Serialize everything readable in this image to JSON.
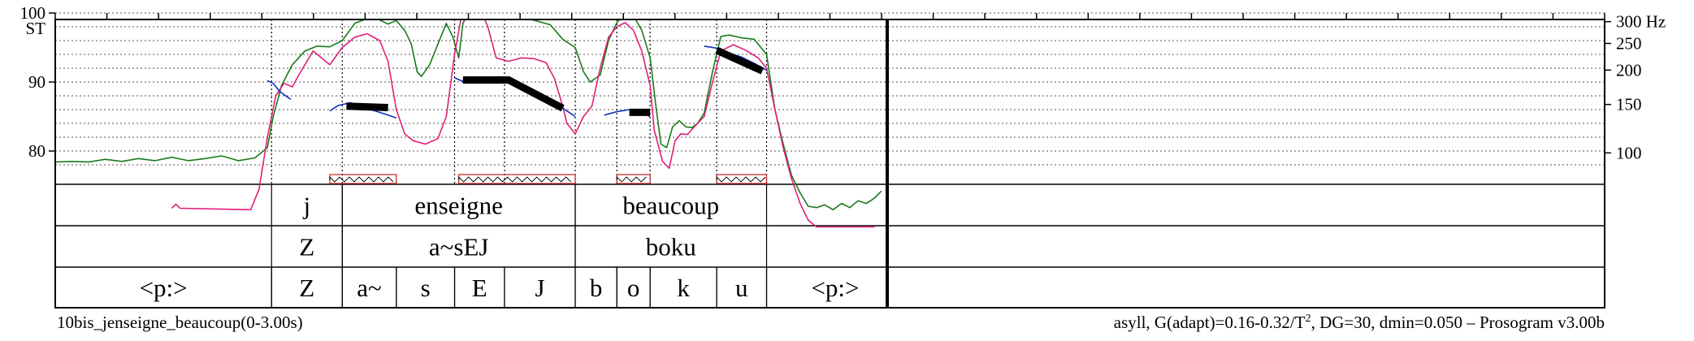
{
  "chart_data": {
    "type": "line",
    "title": "",
    "x_range_s": [
      0,
      3.0
    ],
    "y_range_st": [
      76,
      101
    ],
    "y_ticks_left": [
      {
        "value": 80,
        "label": "80"
      },
      {
        "value": 90,
        "label": "90"
      },
      {
        "value": 100,
        "label": "100"
      }
    ],
    "y_unit_left": "ST",
    "y_ticks_right": [
      {
        "hz": 100,
        "label": "100"
      },
      {
        "hz": 150,
        "label": "150"
      },
      {
        "hz": 200,
        "label": "200"
      },
      {
        "hz": 250,
        "label": "250"
      },
      {
        "hz": 300,
        "label": "300 Hz"
      }
    ],
    "grid_dotted_st": [
      78,
      80,
      82,
      84,
      86,
      88,
      90,
      92,
      94,
      96,
      98,
      100
    ],
    "boundaries_s": [
      0.26,
      0.345,
      0.48,
      0.54,
      0.625,
      0.675,
      0.715,
      0.795,
      0.855
    ],
    "tiers": [
      {
        "name": "words",
        "items": [
          {
            "label": "j",
            "start": 0.26,
            "end": 0.345
          },
          {
            "label": "enseigne",
            "start": 0.345,
            "end": 0.625
          },
          {
            "label": "beaucoup",
            "start": 0.625,
            "end": 0.855
          }
        ]
      },
      {
        "name": "syllables",
        "items": [
          {
            "label": "Z",
            "start": 0.26,
            "end": 0.345
          },
          {
            "label": "a~sEJ",
            "start": 0.345,
            "end": 0.625
          },
          {
            "label": "boku",
            "start": 0.625,
            "end": 0.855
          }
        ]
      },
      {
        "name": "phones",
        "items": [
          {
            "label": "<p:>",
            "start": 0.0,
            "end": 0.26
          },
          {
            "label": "Z",
            "start": 0.26,
            "end": 0.345
          },
          {
            "label": "a~",
            "start": 0.345,
            "end": 0.41
          },
          {
            "label": "s",
            "start": 0.41,
            "end": 0.48
          },
          {
            "label": "E",
            "start": 0.48,
            "end": 0.54
          },
          {
            "label": "J",
            "start": 0.54,
            "end": 0.625
          },
          {
            "label": "b",
            "start": 0.625,
            "end": 0.675
          },
          {
            "label": "o",
            "start": 0.675,
            "end": 0.715
          },
          {
            "label": "k",
            "start": 0.715,
            "end": 0.795
          },
          {
            "label": "u",
            "start": 0.795,
            "end": 0.855
          },
          {
            "label": "<p:>",
            "start": 0.855,
            "end": 1.02
          }
        ]
      }
    ],
    "stylized_pitch": [
      {
        "points": [
          [
            0.35,
            86.5
          ],
          [
            0.4,
            86.3
          ]
        ]
      },
      {
        "points": [
          [
            0.49,
            90.3
          ],
          [
            0.545,
            90.3
          ],
          [
            0.61,
            86.2
          ]
        ]
      },
      {
        "points": [
          [
            0.69,
            85.6
          ],
          [
            0.715,
            85.6
          ]
        ]
      },
      {
        "points": [
          [
            0.795,
            94.6
          ],
          [
            0.85,
            91.6
          ]
        ]
      }
    ],
    "nuclei": [
      {
        "start": 0.33,
        "end": 0.41
      },
      {
        "start": 0.485,
        "end": 0.625
      },
      {
        "start": 0.675,
        "end": 0.715
      },
      {
        "start": 0.795,
        "end": 0.855
      }
    ],
    "series": [
      {
        "name": "",
        "color": "#1a7a1a",
        "points": [
          [
            0.0,
            78.4
          ],
          [
            0.02,
            78.5
          ],
          [
            0.04,
            78.4
          ],
          [
            0.06,
            78.8
          ],
          [
            0.08,
            78.5
          ],
          [
            0.1,
            78.9
          ],
          [
            0.12,
            78.6
          ],
          [
            0.14,
            79.1
          ],
          [
            0.16,
            78.6
          ],
          [
            0.18,
            78.9
          ],
          [
            0.2,
            79.3
          ],
          [
            0.22,
            78.6
          ],
          [
            0.24,
            79.0
          ],
          [
            0.255,
            80.5
          ],
          [
            0.262,
            85.0
          ],
          [
            0.272,
            89.5
          ],
          [
            0.285,
            92.5
          ],
          [
            0.3,
            94.5
          ],
          [
            0.315,
            95.2
          ],
          [
            0.33,
            95.1
          ],
          [
            0.345,
            96.0
          ],
          [
            0.36,
            98.5
          ],
          [
            0.375,
            99.2
          ],
          [
            0.39,
            99.0
          ],
          [
            0.4,
            98.4
          ],
          [
            0.41,
            98.9
          ],
          [
            0.42,
            97.5
          ],
          [
            0.428,
            95.5
          ],
          [
            0.435,
            91.5
          ],
          [
            0.44,
            90.8
          ],
          [
            0.45,
            92.5
          ],
          [
            0.46,
            95.5
          ],
          [
            0.47,
            98.5
          ],
          [
            0.478,
            96.5
          ],
          [
            0.485,
            93.5
          ],
          [
            0.49,
            98.5
          ],
          [
            0.5,
            100.8
          ],
          [
            0.51,
            101.2
          ],
          [
            0.52,
            100.2
          ],
          [
            0.53,
            100.4
          ],
          [
            0.54,
            101.0
          ],
          [
            0.55,
            100.2
          ],
          [
            0.565,
            99.3
          ],
          [
            0.58,
            98.8
          ],
          [
            0.595,
            98.3
          ],
          [
            0.61,
            96.2
          ],
          [
            0.625,
            95.0
          ],
          [
            0.635,
            91.5
          ],
          [
            0.643,
            90.0
          ],
          [
            0.655,
            91.0
          ],
          [
            0.665,
            96.0
          ],
          [
            0.675,
            98.6
          ],
          [
            0.685,
            100.0
          ],
          [
            0.695,
            99.6
          ],
          [
            0.705,
            97.5
          ],
          [
            0.715,
            93.5
          ],
          [
            0.722,
            86.5
          ],
          [
            0.728,
            81.0
          ],
          [
            0.735,
            80.5
          ],
          [
            0.742,
            83.5
          ],
          [
            0.75,
            84.4
          ],
          [
            0.758,
            83.5
          ],
          [
            0.765,
            83.4
          ],
          [
            0.772,
            84.0
          ],
          [
            0.78,
            85.5
          ],
          [
            0.79,
            91.5
          ],
          [
            0.8,
            96.6
          ],
          [
            0.81,
            96.8
          ],
          [
            0.825,
            96.4
          ],
          [
            0.84,
            96.2
          ],
          [
            0.855,
            94.0
          ],
          [
            0.865,
            86.0
          ],
          [
            0.875,
            81.0
          ],
          [
            0.885,
            76.5
          ],
          [
            0.895,
            74.0
          ],
          [
            0.905,
            72.0
          ],
          [
            0.915,
            71.8
          ],
          [
            0.925,
            72.2
          ],
          [
            0.935,
            71.5
          ],
          [
            0.945,
            72.4
          ],
          [
            0.955,
            71.8
          ],
          [
            0.965,
            72.8
          ],
          [
            0.975,
            72.4
          ],
          [
            0.985,
            73.2
          ],
          [
            0.993,
            74.2
          ]
        ]
      },
      {
        "name": "",
        "color": "#e0207a",
        "points": [
          [
            0.14,
            71.7
          ],
          [
            0.145,
            72.3
          ],
          [
            0.15,
            71.7
          ],
          [
            0.235,
            71.5
          ],
          [
            0.245,
            74.5
          ],
          [
            0.255,
            82.0
          ],
          [
            0.265,
            88.0
          ],
          [
            0.275,
            89.8
          ],
          [
            0.285,
            89.3
          ],
          [
            0.295,
            91.5
          ],
          [
            0.31,
            94.5
          ],
          [
            0.32,
            93.5
          ],
          [
            0.33,
            92.5
          ],
          [
            0.345,
            95.0
          ],
          [
            0.36,
            96.5
          ],
          [
            0.375,
            97.0
          ],
          [
            0.39,
            96.0
          ],
          [
            0.4,
            93.0
          ],
          [
            0.41,
            86.0
          ],
          [
            0.42,
            82.5
          ],
          [
            0.43,
            81.5
          ],
          [
            0.445,
            81.0
          ],
          [
            0.46,
            81.8
          ],
          [
            0.47,
            85.0
          ],
          [
            0.48,
            94.0
          ],
          [
            0.49,
            100.8
          ],
          [
            0.5,
            101.5
          ],
          [
            0.51,
            100.8
          ],
          [
            0.52,
            98.0
          ],
          [
            0.53,
            93.5
          ],
          [
            0.545,
            93.0
          ],
          [
            0.56,
            93.5
          ],
          [
            0.575,
            93.4
          ],
          [
            0.59,
            92.8
          ],
          [
            0.6,
            90.5
          ],
          [
            0.61,
            86.5
          ],
          [
            0.615,
            84.0
          ],
          [
            0.625,
            82.5
          ],
          [
            0.635,
            85.0
          ],
          [
            0.645,
            86.5
          ],
          [
            0.655,
            92.0
          ],
          [
            0.665,
            96.5
          ],
          [
            0.675,
            98.0
          ],
          [
            0.685,
            98.6
          ],
          [
            0.695,
            97.5
          ],
          [
            0.705,
            94.5
          ],
          [
            0.715,
            89.5
          ],
          [
            0.72,
            83.0
          ],
          [
            0.73,
            78.5
          ],
          [
            0.738,
            77.5
          ],
          [
            0.745,
            81.5
          ],
          [
            0.752,
            82.5
          ],
          [
            0.76,
            82.4
          ],
          [
            0.768,
            83.5
          ],
          [
            0.78,
            85.0
          ],
          [
            0.79,
            90.0
          ],
          [
            0.8,
            94.5
          ],
          [
            0.815,
            95.4
          ],
          [
            0.83,
            94.6
          ],
          [
            0.845,
            93.5
          ],
          [
            0.855,
            92.0
          ],
          [
            0.865,
            86.0
          ],
          [
            0.875,
            80.5
          ],
          [
            0.885,
            76.0
          ],
          [
            0.895,
            72.5
          ],
          [
            0.905,
            70.0
          ],
          [
            0.915,
            69.0
          ],
          [
            0.93,
            69.0
          ],
          [
            0.96,
            69.0
          ],
          [
            0.985,
            69.0
          ]
        ]
      },
      {
        "name": "",
        "color": "#1030c0",
        "points": [
          [
            0.255,
            90.2
          ],
          [
            0.262,
            89.8
          ],
          [
            0.27,
            88.6
          ],
          [
            0.278,
            87.9
          ],
          [
            0.283,
            87.5
          ]
        ]
      },
      {
        "name": "",
        "color": "#1030c0",
        "points": [
          [
            0.33,
            85.8
          ],
          [
            0.34,
            86.6
          ],
          [
            0.355,
            87.0
          ],
          [
            0.37,
            86.3
          ],
          [
            0.385,
            85.8
          ],
          [
            0.4,
            85.2
          ],
          [
            0.41,
            84.8
          ]
        ]
      },
      {
        "name": "",
        "color": "#1030c0",
        "points": [
          [
            0.48,
            90.6
          ],
          [
            0.49,
            90.1
          ],
          [
            0.505,
            90.0
          ],
          [
            0.52,
            90.2
          ],
          [
            0.54,
            90.6
          ],
          [
            0.56,
            89.3
          ],
          [
            0.58,
            88.2
          ],
          [
            0.6,
            87.0
          ],
          [
            0.615,
            85.8
          ],
          [
            0.625,
            85.0
          ]
        ]
      },
      {
        "name": "",
        "color": "#1030c0",
        "points": [
          [
            0.66,
            85.2
          ],
          [
            0.675,
            85.7
          ],
          [
            0.69,
            86.0
          ],
          [
            0.705,
            85.5
          ],
          [
            0.715,
            85.0
          ]
        ]
      },
      {
        "name": "",
        "color": "#1030c0",
        "points": [
          [
            0.78,
            95.2
          ],
          [
            0.795,
            94.9
          ],
          [
            0.81,
            94.2
          ],
          [
            0.825,
            93.6
          ],
          [
            0.84,
            92.7
          ],
          [
            0.855,
            91.7
          ]
        ]
      }
    ]
  },
  "labels": {
    "left_unit": "ST",
    "footer_left": "10bis_jenseigne_beaucoup(0-3.00s)",
    "footer_right_prefix": "asyll, G(adapt)=0.16-0.32/T",
    "footer_right_sup": "2",
    "footer_right_suffix": ", DG=30, dmin=0.050 – Prosogram v3.00b"
  }
}
